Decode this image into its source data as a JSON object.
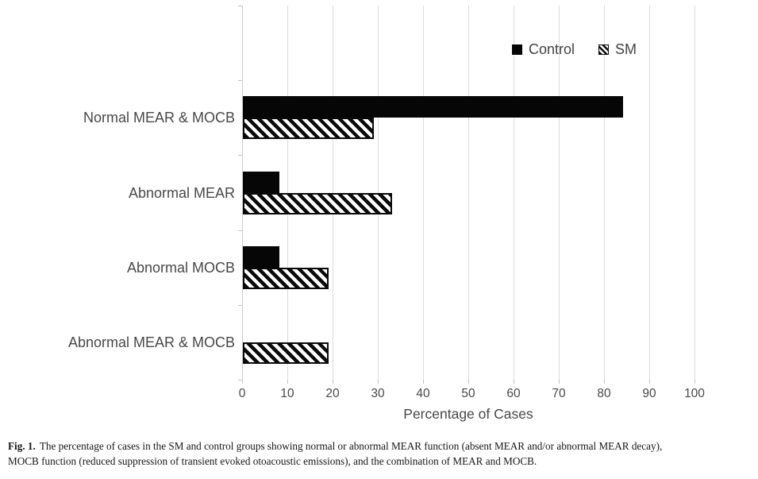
{
  "figure": {
    "caption": {
      "label": "Fig. 1.",
      "line1": "The percentage of cases in the SM and control groups showing normal or abnormal MEAR function (absent MEAR and/or abnormal MEAR decay),",
      "line2": "MOCB function (reduced suppression of transient evoked otoacoustic emissions), and the combination of MEAR and MOCB."
    }
  },
  "chart_data": {
    "type": "bar",
    "orientation": "horizontal",
    "title": "",
    "categories": [
      "Normal MEAR & MOCB",
      "Abnormal MEAR",
      "Abnormal MOCB",
      "Abnormal MEAR & MOCB"
    ],
    "series": [
      {
        "name": "Control",
        "style": "solid",
        "color": "#000000",
        "values": [
          84,
          8,
          8,
          0
        ]
      },
      {
        "name": "SM",
        "style": "diagonal-hatch",
        "color": "#000000",
        "values": [
          29,
          33,
          19,
          19
        ]
      }
    ],
    "xlabel": "Percentage of Cases",
    "ylabel": "",
    "xlim": [
      0,
      100
    ],
    "xticks": [
      0,
      10,
      20,
      30,
      40,
      50,
      60,
      70,
      80,
      90,
      100
    ],
    "grid": true,
    "legend_position": "top-right-inside",
    "colors": {
      "grid": "#dbdbdb",
      "axis_text": "#484848",
      "bar": "#000000"
    }
  }
}
